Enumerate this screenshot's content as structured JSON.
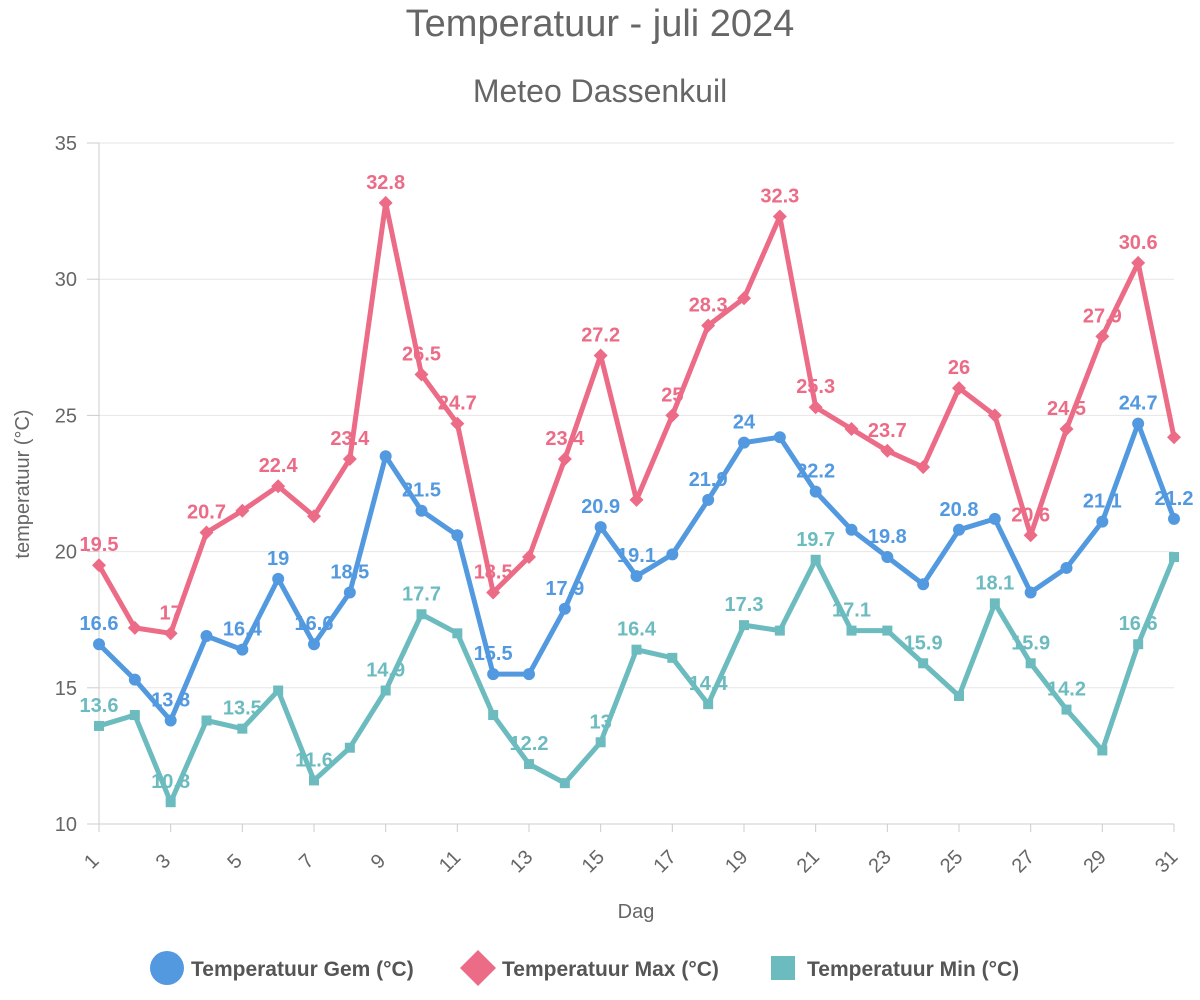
{
  "chart_data": {
    "type": "line",
    "title": "Temperatuur - juli 2024",
    "subtitle": "Meteo Dassenkuil",
    "xlabel": "Dag",
    "ylabel": "temperatuur (°C)",
    "ylim": [
      10,
      35
    ],
    "yticks": [
      "10",
      "15",
      "20",
      "25",
      "30",
      "35"
    ],
    "x": [
      1,
      2,
      3,
      4,
      5,
      6,
      7,
      8,
      9,
      10,
      11,
      12,
      13,
      14,
      15,
      16,
      17,
      18,
      19,
      20,
      21,
      22,
      23,
      24,
      25,
      26,
      27,
      28,
      29,
      30,
      31
    ],
    "xtick_labels": [
      "1",
      "3",
      "5",
      "7",
      "9",
      "11",
      "13",
      "15",
      "17",
      "19",
      "21",
      "23",
      "25",
      "27",
      "29",
      "31"
    ],
    "grid": true,
    "legend_position": "bottom",
    "series": [
      {
        "name": "Temperatuur Gem (°C)",
        "color": "#5299e0",
        "marker": "circle",
        "values": [
          16.6,
          15.3,
          13.8,
          16.9,
          16.4,
          19.0,
          16.6,
          18.5,
          23.5,
          21.5,
          20.6,
          15.5,
          15.5,
          17.9,
          20.9,
          19.1,
          19.9,
          21.9,
          24.0,
          24.2,
          22.2,
          20.8,
          19.8,
          18.8,
          20.8,
          21.2,
          18.5,
          19.4,
          21.1,
          24.7,
          21.2
        ],
        "labels": [
          "16.6",
          "",
          "13.8",
          "",
          "16.4",
          "19",
          "16.6",
          "18.5",
          "",
          "21.5",
          "",
          "15.5",
          "",
          "17.9",
          "20.9",
          "19.1",
          "",
          "21.9",
          "24",
          "",
          "22.2",
          "",
          "19.8",
          "",
          "20.8",
          "",
          "",
          "",
          "21.1",
          "24.7",
          "21.2"
        ]
      },
      {
        "name": "Temperatuur Max (°C)",
        "color": "#ec6b86",
        "marker": "diamond",
        "values": [
          19.5,
          17.2,
          17.0,
          20.7,
          21.5,
          22.4,
          21.3,
          23.4,
          32.8,
          26.5,
          24.7,
          18.5,
          19.8,
          23.4,
          27.2,
          21.9,
          25.0,
          28.3,
          29.3,
          32.3,
          25.3,
          24.5,
          23.7,
          23.1,
          26.0,
          25.0,
          20.6,
          24.5,
          27.9,
          30.6,
          24.2
        ],
        "labels": [
          "19.5",
          "",
          "17",
          "20.7",
          "",
          "22.4",
          "",
          "23.4",
          "32.8",
          "26.5",
          "24.7",
          "18.5",
          "",
          "23.4",
          "27.2",
          "",
          "25",
          "28.3",
          "",
          "32.3",
          "25.3",
          "",
          "23.7",
          "",
          "26",
          "",
          "20.6",
          "24.5",
          "27.9",
          "30.6",
          ""
        ]
      },
      {
        "name": "Temperatuur Min (°C)",
        "color": "#6cbbbf",
        "marker": "square",
        "values": [
          13.6,
          14.0,
          10.8,
          13.8,
          13.5,
          14.9,
          11.6,
          12.8,
          14.9,
          17.7,
          17.0,
          14.0,
          12.2,
          11.5,
          13.0,
          16.4,
          16.1,
          14.4,
          17.3,
          17.1,
          19.7,
          17.1,
          17.1,
          15.9,
          14.7,
          18.1,
          15.9,
          14.2,
          12.7,
          16.6,
          19.8
        ],
        "labels": [
          "13.6",
          "",
          "10.8",
          "",
          "13.5",
          "",
          "11.6",
          "",
          "14.9",
          "17.7",
          "",
          "",
          "12.2",
          "",
          "13",
          "16.4",
          "",
          "14.4",
          "17.3",
          "",
          "19.7",
          "17.1",
          "",
          "15.9",
          "",
          "18.1",
          "15.9",
          "14.2",
          "",
          "16.6",
          ""
        ]
      }
    ]
  }
}
